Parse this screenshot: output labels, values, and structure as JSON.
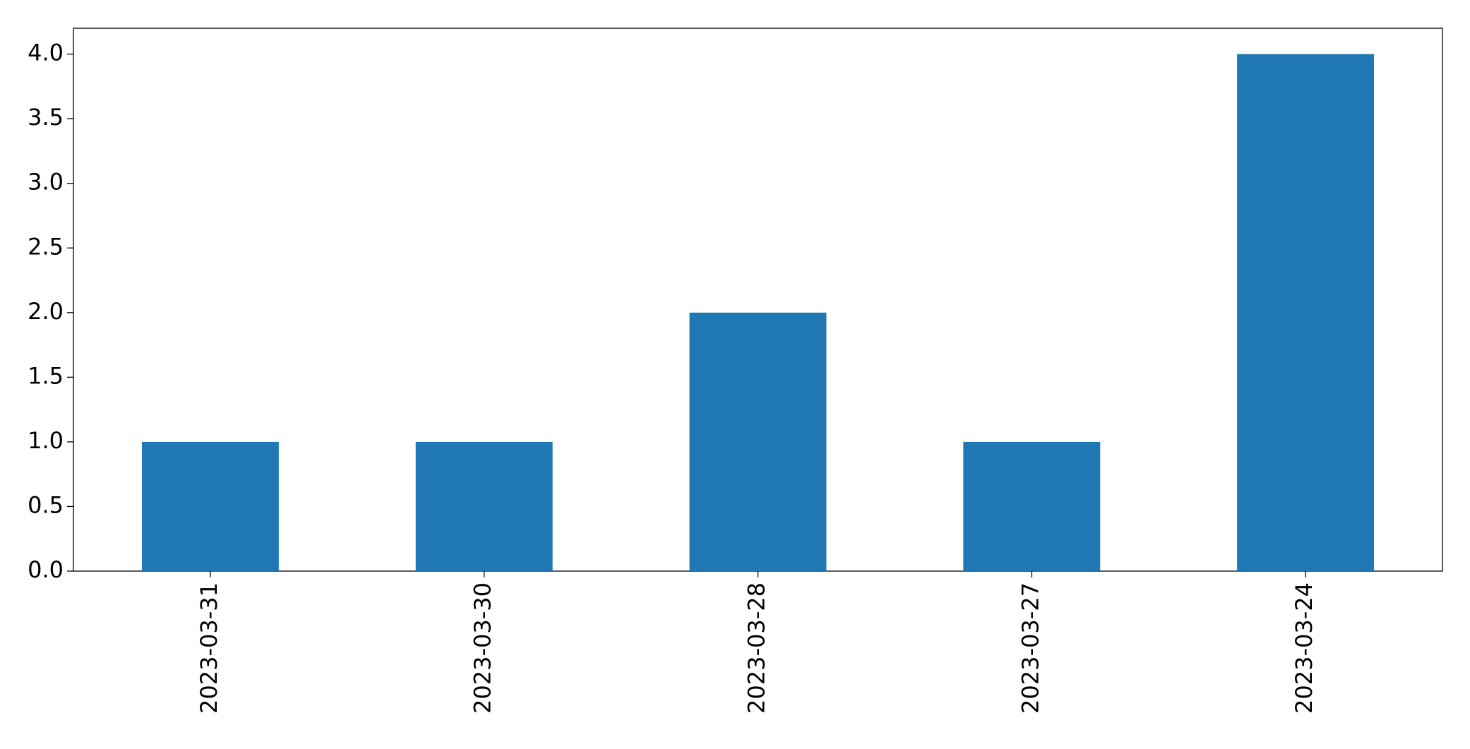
{
  "chart_data": {
    "type": "bar",
    "categories": [
      "2023-03-31",
      "2023-03-30",
      "2023-03-28",
      "2023-03-27",
      "2023-03-24"
    ],
    "values": [
      1,
      1,
      2,
      1,
      4
    ],
    "color": "#1f77b4",
    "ylim": [
      0,
      4.2
    ],
    "yticks": [
      {
        "value": 0,
        "label": "0.0"
      },
      0.5,
      {
        "value": 1,
        "label": "1.0"
      },
      1.5,
      {
        "value": 2,
        "label": "2.0"
      },
      2.5,
      {
        "value": 3,
        "label": "3.0"
      },
      3.5,
      {
        "value": 4,
        "label": "4.0"
      }
    ],
    "grid": false
  }
}
